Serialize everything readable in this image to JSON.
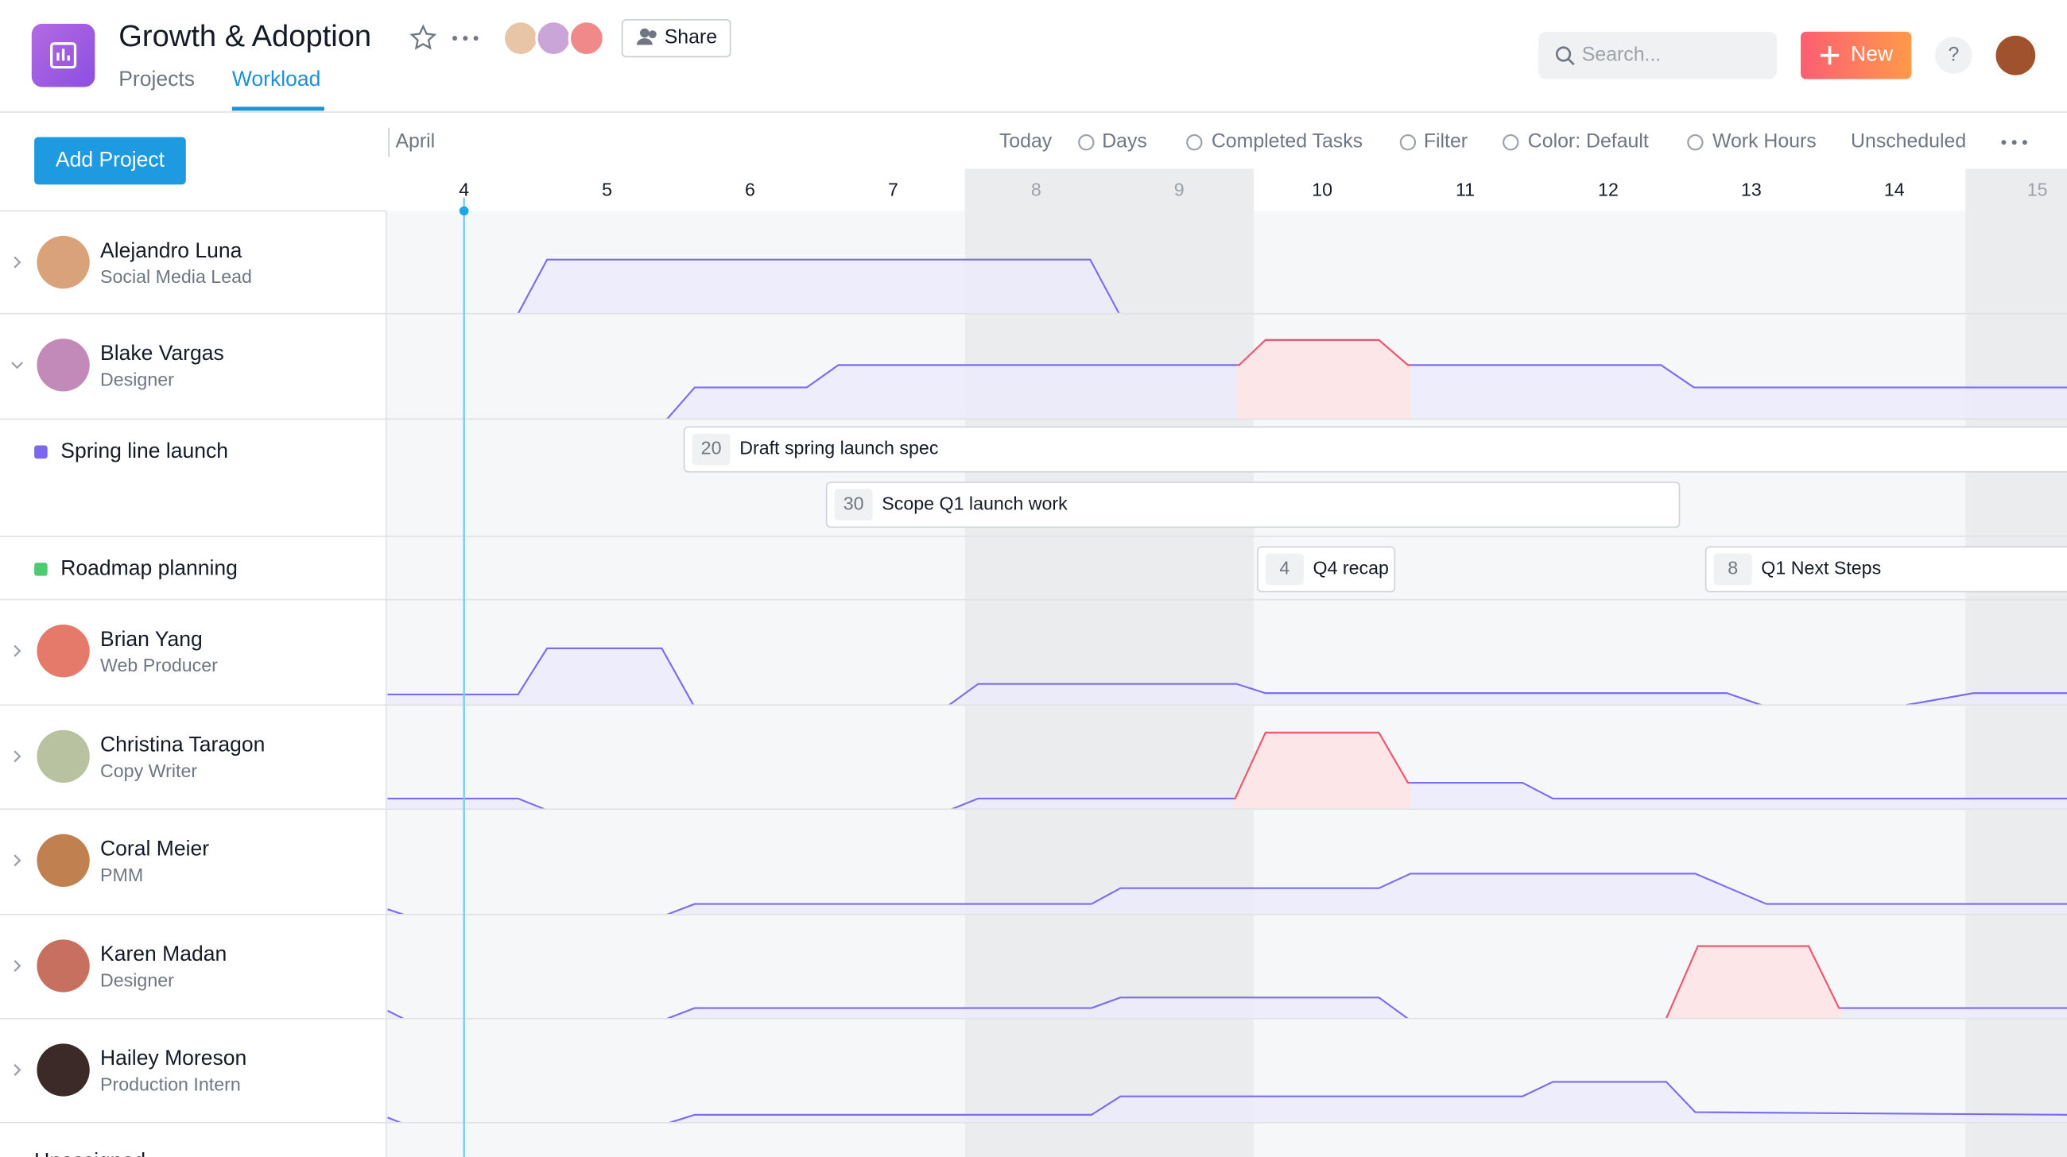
{
  "header": {
    "title": "Growth & Adoption",
    "tabs": [
      "Projects",
      "Workload"
    ],
    "share": "Share",
    "search_placeholder": "Search...",
    "new_button": "New",
    "help": "?"
  },
  "toolbar": {
    "add_project": "Add Project",
    "month": "April",
    "controls": [
      "Today",
      "Days",
      "Completed Tasks",
      "Filter",
      "Color: Default",
      "Work Hours",
      "Unscheduled"
    ]
  },
  "days": [
    4,
    5,
    6,
    7,
    8,
    9,
    10,
    11,
    12,
    13,
    14,
    15
  ],
  "people": [
    {
      "name": "Alejandro Luna",
      "role": "Social Media Lead"
    },
    {
      "name": "Blake Vargas",
      "role": "Designer"
    },
    {
      "name": "Brian Yang",
      "role": "Web Producer"
    },
    {
      "name": "Christina Taragon",
      "role": "Copy Writer"
    },
    {
      "name": "Coral Meier",
      "role": "PMM"
    },
    {
      "name": "Karen Madan",
      "role": "Designer"
    },
    {
      "name": "Hailey Moreson",
      "role": "Production Intern"
    }
  ],
  "projects": [
    {
      "name": "Spring line launch",
      "tasks": [
        {
          "count": 20,
          "label": "Draft spring launch spec"
        },
        {
          "count": 30,
          "label": "Scope Q1 launch work"
        }
      ]
    },
    {
      "name": "Roadmap planning",
      "tasks": [
        {
          "count": 4,
          "label": "Q4 recap"
        },
        {
          "count": 8,
          "label": "Q1 Next Steps"
        }
      ]
    }
  ],
  "unassigned": "Unassigned"
}
